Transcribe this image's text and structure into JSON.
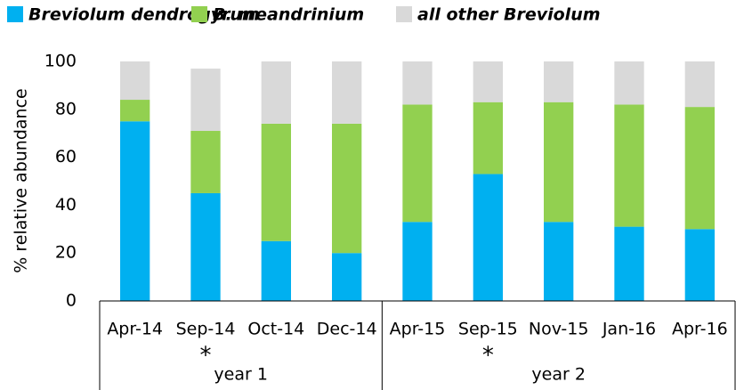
{
  "chart_data": {
    "type": "stacked_bar",
    "y_label": "% relative abundance",
    "categories": [
      "Apr-14",
      "Sep-14",
      "Oct-14",
      "Dec-14",
      "Apr-15",
      "Sep-15",
      "Nov-15",
      "Jan-16",
      "Apr-16"
    ],
    "series": [
      {
        "name": "Breviolum dendrogyrum",
        "color": "#00b0f0",
        "values": [
          75,
          45,
          25,
          20,
          33,
          53,
          33,
          31,
          30
        ]
      },
      {
        "name": "B. meandrinium",
        "color": "#92d050",
        "values": [
          9,
          26,
          49,
          54,
          49,
          30,
          50,
          51,
          51
        ]
      },
      {
        "name": "all other Breviolum",
        "color": "#d9d9d9",
        "values": [
          16,
          26,
          26,
          26,
          18,
          17,
          17,
          18,
          19
        ]
      }
    ],
    "annotations": [
      null,
      "*",
      null,
      null,
      null,
      "*",
      null,
      null,
      null
    ],
    "groups": [
      {
        "label": "year 1",
        "span": 4
      },
      {
        "label": "year 2",
        "span": 5
      }
    ],
    "ylim": [
      0,
      100
    ],
    "yticks": [
      0,
      20,
      40,
      60,
      80,
      100
    ],
    "legend": "top"
  }
}
